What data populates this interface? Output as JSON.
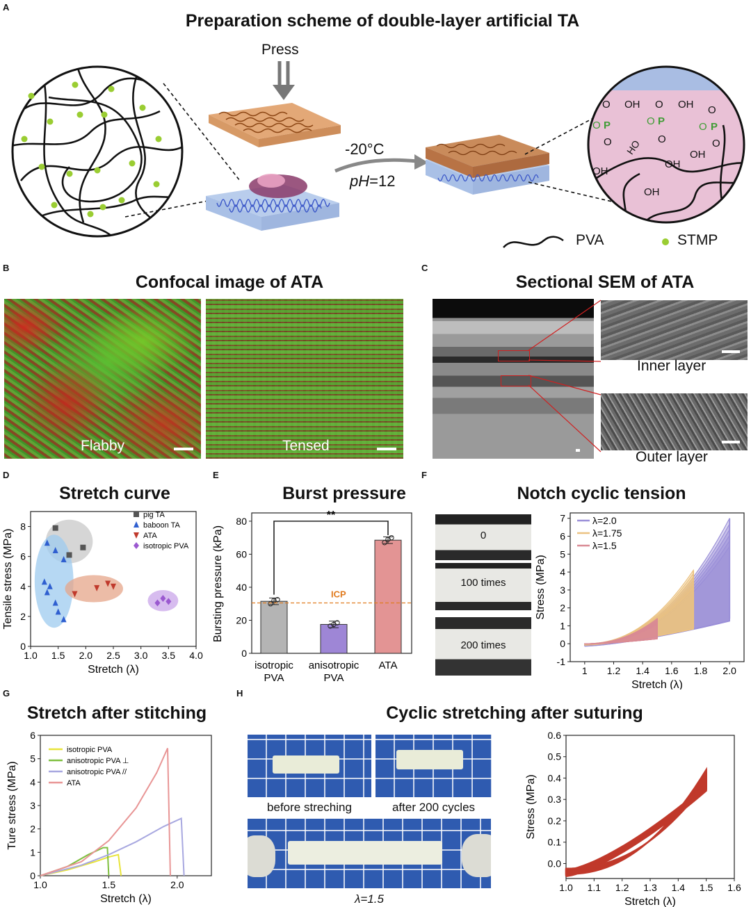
{
  "panels": {
    "A": {
      "letter": "A",
      "title": "Preparation scheme of double-layer artificial TA",
      "press": "Press",
      "temp": "-20°C",
      "ph_italic": "pH",
      "ph_value": "=12",
      "legend_pva": "PVA",
      "legend_stmp": "STMP",
      "chem": {
        "o": "O",
        "oh": "OH",
        "p": "P",
        "ho": "HO"
      }
    },
    "B": {
      "letter": "B",
      "title": "Confocal image of ATA",
      "left_label": "Flabby",
      "right_label": "Tensed"
    },
    "C": {
      "letter": "C",
      "title": "Sectional SEM of ATA",
      "inner": "Inner layer",
      "outer": "Outer layer"
    },
    "D": {
      "letter": "D",
      "title": "Stretch curve"
    },
    "E": {
      "letter": "E",
      "title": "Burst pressure"
    },
    "F": {
      "letter": "F",
      "title": "Notch cyclic tension",
      "photo_labels": [
        "0",
        "100 times",
        "200 times"
      ]
    },
    "G": {
      "letter": "G",
      "title": "Stretch after stitching"
    },
    "H": {
      "letter": "H",
      "title": "Cyclic stretching after suturing",
      "before": "before streching",
      "after": "after 200 cycles",
      "lambda_label": "λ=1.5"
    }
  },
  "colors": {
    "pva_layer": "#b9cdec",
    "pink_layer": "#e9c1d6",
    "brown_layer": "#e3a877",
    "stmp_dot": "#9acd32",
    "phosphate_green": "#3f9c35"
  },
  "chart_data": [
    {
      "id": "D",
      "type": "scatter",
      "xlabel": "Stretch (λ)",
      "ylabel": "Tensile stress (MPa)",
      "xlim": [
        1.0,
        4.0
      ],
      "ylim": [
        0,
        9
      ],
      "xticks": [
        "1.0",
        "1.5",
        "2.0",
        "2.5",
        "3.0",
        "3.5",
        "4.0"
      ],
      "yticks": [
        "0",
        "2",
        "4",
        "6",
        "8"
      ],
      "legend_position": "top-right",
      "series": [
        {
          "name": "pig TA",
          "color": "#555555",
          "marker": "square",
          "ellipse": "#c8c8c8",
          "x": [
            1.45,
            1.7,
            1.95
          ],
          "y": [
            7.9,
            6.1,
            6.6
          ]
        },
        {
          "name": "baboon TA",
          "color": "#2f5fd0",
          "marker": "triangle",
          "ellipse": "#9ecbef",
          "x": [
            1.3,
            1.45,
            1.6,
            1.25,
            1.35,
            1.3,
            1.45,
            1.5,
            1.6
          ],
          "y": [
            6.9,
            6.4,
            5.8,
            4.3,
            4.0,
            3.6,
            2.9,
            2.3,
            1.8
          ]
        },
        {
          "name": "ATA",
          "color": "#c0392b",
          "marker": "triangle-down",
          "ellipse": "#e6a58a",
          "x": [
            1.8,
            2.2,
            2.4,
            2.5
          ],
          "y": [
            3.5,
            3.9,
            4.2,
            4.0
          ]
        },
        {
          "name": "isotropic PVA",
          "color": "#9b59d0",
          "marker": "diamond",
          "ellipse": "#c9a6ea",
          "x": [
            3.3,
            3.4,
            3.5
          ],
          "y": [
            2.9,
            3.2,
            3.0
          ]
        }
      ]
    },
    {
      "id": "E",
      "type": "bar",
      "ylabel": "Bursting pressure (kPa)",
      "categories": [
        "isotropic PVA",
        "anisotropic PVA",
        "ATA"
      ],
      "category_lines": [
        [
          "isotropic",
          "PVA"
        ],
        [
          "anisotropic",
          "PVA"
        ],
        [
          "ATA"
        ]
      ],
      "values": [
        31.5,
        17.5,
        68.5
      ],
      "errors": [
        2.0,
        2.0,
        2.0
      ],
      "points": [
        [
          30,
          32,
          32.5
        ],
        [
          16.5,
          17.5,
          18.5
        ],
        [
          67,
          69,
          70
        ]
      ],
      "colors": [
        "#b4b4b4",
        "#9e86d6",
        "#e39494"
      ],
      "ylim": [
        0,
        85
      ],
      "yticks": [
        "0",
        "20",
        "40",
        "60",
        "80"
      ],
      "reference_line": {
        "label": "ICP",
        "value": 30.5,
        "color": "#e07b1f"
      },
      "significance": {
        "label": "**",
        "from": 0,
        "to": 2,
        "y": 80
      }
    },
    {
      "id": "F",
      "type": "line",
      "xlabel": "Stretch (λ)",
      "ylabel": "Stress (MPa)",
      "xlim": [
        0.9,
        2.1
      ],
      "ylim": [
        -1,
        7.3
      ],
      "xticks": [
        "1",
        "1.2",
        "1.4",
        "1.6",
        "1.8",
        "2.0"
      ],
      "yticks": [
        "-1",
        "0",
        "1",
        "2",
        "3",
        "4",
        "5",
        "6",
        "7"
      ],
      "legend_position": "top-left",
      "series": [
        {
          "name": "λ=2.0",
          "color": "#9a8fd8",
          "lambda_max": 2.0,
          "peak": 7.0,
          "drop": 1.4
        },
        {
          "name": "λ=1.75",
          "color": "#ebc281",
          "lambda_max": 1.75,
          "peak": 4.1,
          "drop": 0.9
        },
        {
          "name": "λ=1.5",
          "color": "#d98a94",
          "lambda_max": 1.5,
          "peak": 1.4,
          "drop": 0.3
        }
      ]
    },
    {
      "id": "G",
      "type": "line",
      "xlabel": "Stretch (λ)",
      "ylabel": "Ture stress (MPa)",
      "xlim": [
        1.0,
        2.25
      ],
      "ylim": [
        0,
        6
      ],
      "xticks": [
        "1.0",
        "1.5",
        "2.0"
      ],
      "yticks": [
        "0",
        "1",
        "2",
        "3",
        "4",
        "5",
        "6"
      ],
      "legend_position": "top-left",
      "series": [
        {
          "name": "isotropic PVA",
          "color": "#e8e43a",
          "x": [
            1.0,
            1.2,
            1.4,
            1.5,
            1.57,
            1.59
          ],
          "y": [
            0,
            0.25,
            0.6,
            0.8,
            0.9,
            0
          ]
        },
        {
          "name": "anisotropic PVA ⊥",
          "color": "#7fbf3f",
          "x": [
            1.0,
            1.2,
            1.35,
            1.46,
            1.49,
            1.5
          ],
          "y": [
            0,
            0.4,
            0.9,
            1.2,
            1.2,
            0
          ]
        },
        {
          "name": "anisotropic PVA //",
          "color": "#a8a8e0",
          "x": [
            1.0,
            1.3,
            1.5,
            1.7,
            1.9,
            2.03,
            2.05
          ],
          "y": [
            0,
            0.45,
            0.9,
            1.45,
            2.1,
            2.45,
            0
          ]
        },
        {
          "name": "ATA",
          "color": "#e89595",
          "x": [
            1.0,
            1.3,
            1.5,
            1.7,
            1.85,
            1.93,
            1.95
          ],
          "y": [
            0,
            0.6,
            1.5,
            2.9,
            4.4,
            5.45,
            0
          ]
        }
      ]
    },
    {
      "id": "H",
      "type": "line",
      "xlabel": "Stretch (λ)",
      "ylabel": "Stress (MPa)",
      "xlim": [
        1.0,
        1.6
      ],
      "ylim": [
        -0.07,
        0.6
      ],
      "xticks": [
        "1.0",
        "1.1",
        "1.2",
        "1.3",
        "1.4",
        "1.5",
        "1.6"
      ],
      "yticks": [
        "0.0",
        "0.1",
        "0.2",
        "0.3",
        "0.4",
        "0.5",
        "0.6"
      ],
      "series": [
        {
          "color": "#c0392b",
          "lambda_max": 1.5,
          "peak": 0.49
        }
      ]
    }
  ]
}
